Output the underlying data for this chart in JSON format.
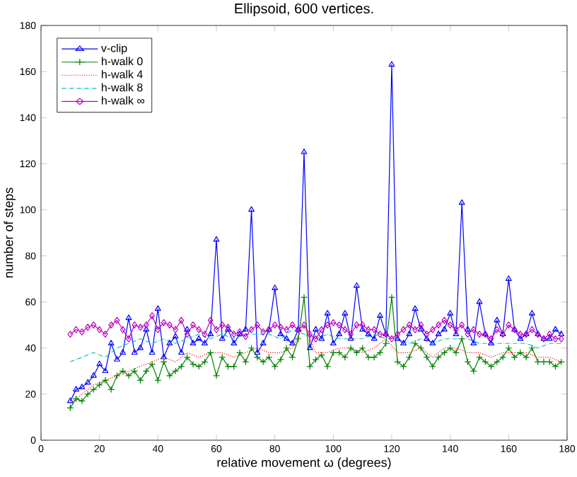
{
  "chart_data": {
    "type": "line",
    "title": "Ellipsoid, 600 vertices.",
    "xlabel": "relative movement ω (degrees)",
    "ylabel": "number of steps",
    "xlim": [
      0,
      180
    ],
    "ylim": [
      0,
      180
    ],
    "xticks": [
      0,
      20,
      40,
      60,
      80,
      100,
      120,
      140,
      160,
      180
    ],
    "yticks": [
      0,
      20,
      40,
      60,
      80,
      100,
      120,
      140,
      160,
      180
    ],
    "grid": false,
    "legend": "top left",
    "series": [
      {
        "name": "v-clip",
        "color": "#0000ff",
        "marker": "triangle",
        "line_style": "solid",
        "x": [
          10,
          12,
          14,
          16,
          18,
          20,
          22,
          24,
          26,
          28,
          30,
          32,
          34,
          36,
          38,
          40,
          42,
          44,
          46,
          48,
          50,
          52,
          54,
          56,
          58,
          60,
          62,
          64,
          66,
          68,
          70,
          72,
          74,
          76,
          78,
          80,
          82,
          84,
          86,
          88,
          90,
          92,
          94,
          96,
          98,
          100,
          102,
          104,
          106,
          108,
          110,
          112,
          114,
          116,
          118,
          120,
          122,
          124,
          126,
          128,
          130,
          132,
          134,
          136,
          138,
          140,
          142,
          144,
          146,
          148,
          150,
          152,
          154,
          156,
          158,
          160,
          162,
          164,
          166,
          168,
          170,
          172,
          174,
          176,
          178
        ],
        "values": [
          17,
          22,
          23,
          25,
          28,
          33,
          30,
          42,
          35,
          38,
          53,
          38,
          40,
          48,
          38,
          57,
          36,
          42,
          45,
          38,
          48,
          42,
          44,
          42,
          46,
          87,
          44,
          48,
          42,
          46,
          48,
          100,
          38,
          42,
          48,
          66,
          46,
          44,
          42,
          48,
          125,
          40,
          48,
          44,
          55,
          42,
          46,
          55,
          44,
          67,
          48,
          46,
          44,
          54,
          46,
          163,
          44,
          42,
          46,
          57,
          48,
          44,
          42,
          46,
          48,
          55,
          46,
          103,
          48,
          42,
          60,
          46,
          42,
          52,
          46,
          70,
          48,
          44,
          46,
          55,
          46,
          44,
          44,
          48,
          46
        ]
      },
      {
        "name": "h-walk 0",
        "color": "#007f00",
        "marker": "cross",
        "line_style": "solid",
        "x": [
          10,
          12,
          14,
          16,
          18,
          20,
          22,
          24,
          26,
          28,
          30,
          32,
          34,
          36,
          38,
          40,
          42,
          44,
          46,
          48,
          50,
          52,
          54,
          56,
          58,
          60,
          62,
          64,
          66,
          68,
          70,
          72,
          74,
          76,
          78,
          80,
          82,
          84,
          86,
          88,
          90,
          92,
          94,
          96,
          98,
          100,
          102,
          104,
          106,
          108,
          110,
          112,
          114,
          116,
          118,
          120,
          122,
          124,
          126,
          128,
          130,
          132,
          134,
          136,
          138,
          140,
          142,
          144,
          146,
          148,
          150,
          152,
          154,
          156,
          158,
          160,
          162,
          164,
          166,
          168,
          170,
          172,
          174,
          176,
          178
        ],
        "values": [
          14,
          18,
          17,
          20,
          22,
          24,
          26,
          22,
          28,
          30,
          28,
          30,
          26,
          30,
          33,
          26,
          34,
          28,
          30,
          32,
          36,
          33,
          32,
          34,
          38,
          28,
          36,
          32,
          32,
          38,
          34,
          40,
          36,
          34,
          36,
          32,
          35,
          40,
          36,
          44,
          62,
          32,
          35,
          37,
          32,
          38,
          38,
          36,
          40,
          38,
          40,
          36,
          36,
          38,
          42,
          62,
          34,
          32,
          36,
          42,
          40,
          36,
          32,
          36,
          38,
          40,
          38,
          44,
          34,
          30,
          36,
          34,
          32,
          34,
          36,
          40,
          36,
          38,
          36,
          40,
          34,
          34,
          34,
          32,
          34
        ]
      },
      {
        "name": "h-walk 4",
        "color": "#ff0000",
        "marker": "none",
        "line_style": "dotted",
        "x": [
          10,
          14,
          18,
          22,
          26,
          30,
          34,
          38,
          42,
          46,
          50,
          54,
          58,
          62,
          66,
          70,
          74,
          78,
          82,
          86,
          90,
          94,
          98,
          102,
          106,
          110,
          114,
          118,
          122,
          126,
          130,
          134,
          138,
          142,
          146,
          150,
          154,
          158,
          162,
          166,
          170,
          174,
          178
        ],
        "values": [
          16,
          20,
          24,
          26,
          28,
          30,
          32,
          34,
          36,
          34,
          38,
          36,
          38,
          38,
          36,
          38,
          40,
          38,
          38,
          40,
          50,
          38,
          38,
          40,
          40,
          38,
          40,
          44,
          38,
          38,
          40,
          36,
          40,
          40,
          38,
          38,
          36,
          38,
          38,
          38,
          36,
          36,
          34
        ]
      },
      {
        "name": "h-walk 8",
        "color": "#00bfbf",
        "marker": "none",
        "line_style": "dashdotted",
        "x": [
          10,
          14,
          18,
          22,
          26,
          30,
          34,
          38,
          42,
          46,
          50,
          54,
          58,
          62,
          66,
          70,
          74,
          78,
          82,
          86,
          90,
          94,
          98,
          102,
          106,
          110,
          114,
          118,
          122,
          126,
          130,
          134,
          138,
          142,
          146,
          150,
          154,
          158,
          162,
          166,
          170,
          174,
          178
        ],
        "values": [
          34,
          36,
          38,
          36,
          40,
          42,
          44,
          42,
          44,
          42,
          44,
          46,
          44,
          46,
          44,
          46,
          46,
          46,
          44,
          48,
          46,
          44,
          46,
          44,
          44,
          44,
          46,
          44,
          44,
          42,
          44,
          42,
          44,
          44,
          44,
          42,
          42,
          42,
          42,
          42,
          40,
          42,
          42
        ]
      },
      {
        "name": "h-walk ∞",
        "color": "#bf00bf",
        "marker": "diamond",
        "line_style": "solid",
        "x": [
          10,
          12,
          14,
          16,
          18,
          20,
          22,
          24,
          26,
          28,
          30,
          32,
          34,
          36,
          38,
          40,
          42,
          44,
          46,
          48,
          50,
          52,
          54,
          56,
          58,
          60,
          62,
          64,
          66,
          68,
          70,
          72,
          74,
          76,
          78,
          80,
          82,
          84,
          86,
          88,
          90,
          92,
          94,
          96,
          98,
          100,
          102,
          104,
          106,
          108,
          110,
          112,
          114,
          116,
          118,
          120,
          122,
          124,
          126,
          128,
          130,
          132,
          134,
          136,
          138,
          140,
          142,
          144,
          146,
          148,
          150,
          152,
          154,
          156,
          158,
          160,
          162,
          164,
          166,
          168,
          170,
          172,
          174,
          176,
          178
        ],
        "values": [
          46,
          48,
          47,
          49,
          50,
          48,
          46,
          50,
          52,
          48,
          44,
          50,
          49,
          50,
          54,
          48,
          51,
          50,
          48,
          52,
          46,
          50,
          48,
          46,
          52,
          48,
          50,
          49,
          46,
          47,
          45,
          48,
          50,
          47,
          48,
          50,
          49,
          48,
          50,
          48,
          50,
          46,
          44,
          48,
          50,
          51,
          50,
          48,
          46,
          50,
          50,
          48,
          48,
          46,
          46,
          44,
          46,
          48,
          50,
          48,
          50,
          46,
          48,
          50,
          52,
          50,
          48,
          50,
          46,
          48,
          46,
          46,
          44,
          48,
          46,
          50,
          48,
          46,
          46,
          48,
          46,
          44,
          46,
          44,
          44
        ]
      }
    ]
  }
}
